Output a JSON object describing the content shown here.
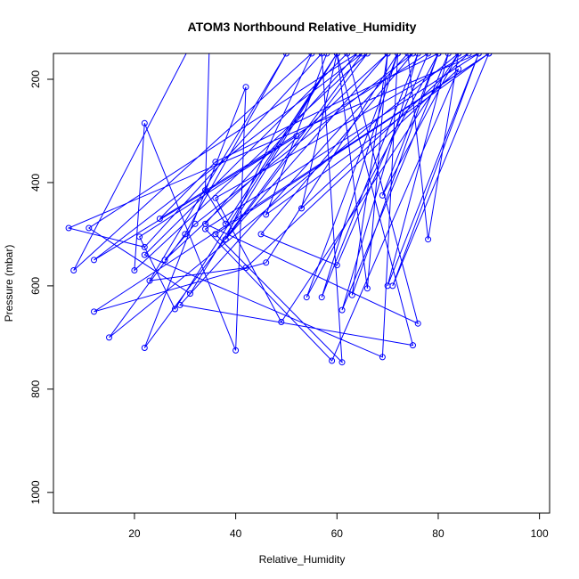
{
  "chart_data": {
    "type": "line",
    "title": "ATOM3 Northbound Relative_Humidity",
    "xlabel": "Relative_Humidity",
    "ylabel": "Pressure (mbar)",
    "xlim": [
      4,
      102
    ],
    "ylim": [
      1040,
      150
    ],
    "y_reversed": true,
    "grid": false,
    "legend": "none",
    "x_ticks": [
      20,
      40,
      60,
      80,
      100
    ],
    "y_ticks": [
      200,
      400,
      600,
      800,
      1000
    ],
    "series_color": "#0000ff",
    "series": [
      {
        "values": [
          {
            "x": 38,
            "y": 510
          },
          {
            "x": 55,
            "y": 150
          },
          {
            "x": 8,
            "y": 570
          },
          {
            "x": 35,
            "y": 60
          },
          {
            "x": 34,
            "y": 415
          },
          {
            "x": 38,
            "y": 480
          },
          {
            "x": 60,
            "y": 150
          },
          {
            "x": 28,
            "y": 645
          },
          {
            "x": 21,
            "y": 505
          },
          {
            "x": 52,
            "y": 310
          },
          {
            "x": 12,
            "y": 550
          },
          {
            "x": 65,
            "y": 150
          },
          {
            "x": 22,
            "y": 720
          },
          {
            "x": 42,
            "y": 215
          },
          {
            "x": 40,
            "y": 725
          },
          {
            "x": 22,
            "y": 285
          },
          {
            "x": 20,
            "y": 570
          },
          {
            "x": 66,
            "y": 150
          },
          {
            "x": 38,
            "y": 510
          },
          {
            "x": 70,
            "y": 150
          },
          {
            "x": 26,
            "y": 550
          },
          {
            "x": 32,
            "y": 480
          },
          {
            "x": 75,
            "y": 150
          },
          {
            "x": 45,
            "y": 500
          },
          {
            "x": 60,
            "y": 560
          },
          {
            "x": 78,
            "y": 150
          },
          {
            "x": 25,
            "y": 470
          },
          {
            "x": 36,
            "y": 360
          },
          {
            "x": 80,
            "y": 150
          },
          {
            "x": 69,
            "y": 425
          },
          {
            "x": 84,
            "y": 150
          },
          {
            "x": 15,
            "y": 700
          },
          {
            "x": 30,
            "y": 500
          },
          {
            "x": 50,
            "y": 150
          },
          {
            "x": 23,
            "y": 590
          },
          {
            "x": 42,
            "y": 565
          },
          {
            "x": 84,
            "y": 180
          },
          {
            "x": 59,
            "y": 745
          },
          {
            "x": 34,
            "y": 490
          },
          {
            "x": 88,
            "y": 150
          },
          {
            "x": 7,
            "y": 488
          },
          {
            "x": 22,
            "y": 525
          },
          {
            "x": 57,
            "y": 150
          },
          {
            "x": 61,
            "y": 748
          },
          {
            "x": 36,
            "y": 500
          },
          {
            "x": 90,
            "y": 150
          },
          {
            "x": 12,
            "y": 650
          },
          {
            "x": 46,
            "y": 555
          },
          {
            "x": 72,
            "y": 150
          },
          {
            "x": 69,
            "y": 738
          },
          {
            "x": 22,
            "y": 540
          },
          {
            "x": 62,
            "y": 150
          },
          {
            "x": 76,
            "y": 673
          },
          {
            "x": 34,
            "y": 480
          },
          {
            "x": 64,
            "y": 150
          },
          {
            "x": 11,
            "y": 488
          },
          {
            "x": 31,
            "y": 615
          },
          {
            "x": 60,
            "y": 150
          },
          {
            "x": 75,
            "y": 715
          },
          {
            "x": 29,
            "y": 637
          },
          {
            "x": 74,
            "y": 150
          },
          {
            "x": 78,
            "y": 510
          },
          {
            "x": 84,
            "y": 150
          },
          {
            "x": 49,
            "y": 670
          },
          {
            "x": 36,
            "y": 430
          },
          {
            "x": 86,
            "y": 150
          },
          {
            "x": 53,
            "y": 450
          },
          {
            "x": 60,
            "y": 150
          },
          {
            "x": 66,
            "y": 605
          },
          {
            "x": 70,
            "y": 150
          },
          {
            "x": 63,
            "y": 618
          },
          {
            "x": 80,
            "y": 150
          },
          {
            "x": 54,
            "y": 622
          },
          {
            "x": 72,
            "y": 150
          },
          {
            "x": 57,
            "y": 622
          },
          {
            "x": 76,
            "y": 150
          },
          {
            "x": 61,
            "y": 647
          },
          {
            "x": 82,
            "y": 150
          },
          {
            "x": 70,
            "y": 600
          },
          {
            "x": 88,
            "y": 150
          },
          {
            "x": 71,
            "y": 600
          },
          {
            "x": 90,
            "y": 150
          },
          {
            "x": 46,
            "y": 462
          },
          {
            "x": 58,
            "y": 150
          }
        ]
      }
    ]
  }
}
